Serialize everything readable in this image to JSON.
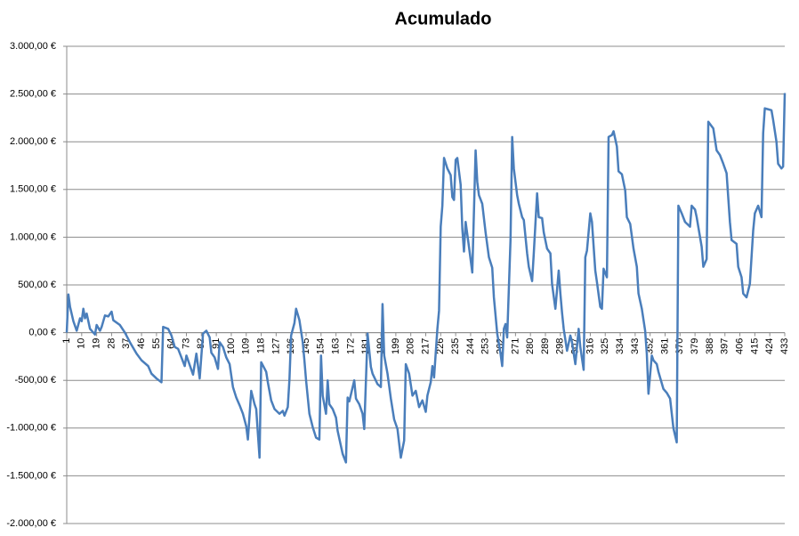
{
  "chart_data": {
    "type": "line",
    "title": "Acumulado",
    "x": [
      1,
      2,
      3,
      5,
      7,
      9,
      10,
      11,
      12,
      13,
      15,
      18,
      19,
      21,
      22,
      24,
      26,
      28,
      29,
      33,
      36,
      39,
      43,
      46,
      50,
      52,
      55,
      58,
      59,
      62,
      64,
      66,
      68,
      70,
      72,
      73,
      77,
      79,
      81,
      83,
      85,
      87,
      88,
      90,
      92,
      93,
      95,
      97,
      99,
      101,
      103,
      105,
      107,
      109,
      110,
      112,
      114,
      115,
      117,
      118,
      121,
      122,
      124,
      126,
      129,
      131,
      132,
      134,
      135,
      136,
      138,
      139,
      141,
      143,
      144,
      145,
      147,
      149,
      151,
      153,
      154,
      155,
      157,
      158,
      159,
      161,
      163,
      164,
      167,
      169,
      170,
      171,
      174,
      175,
      177,
      179,
      180,
      182,
      184,
      185,
      188,
      190,
      191,
      192,
      194,
      196,
      198,
      200,
      202,
      204,
      205,
      207,
      209,
      211,
      213,
      215,
      217,
      218,
      220,
      221,
      222,
      224,
      225,
      226,
      227,
      228,
      230,
      232,
      233,
      234,
      235,
      236,
      238,
      239,
      240,
      241,
      243,
      245,
      247,
      248,
      249,
      251,
      253,
      255,
      257,
      258,
      260,
      262,
      263,
      264,
      265,
      266,
      268,
      269,
      270,
      272,
      273,
      275,
      276,
      278,
      279,
      281,
      282,
      284,
      285,
      287,
      288,
      290,
      292,
      293,
      295,
      297,
      298,
      299,
      300,
      302,
      304,
      305,
      307,
      309,
      310,
      312,
      313,
      314,
      316,
      317,
      319,
      320,
      322,
      323,
      324,
      326,
      327,
      329,
      330,
      332,
      333,
      335,
      337,
      338,
      340,
      342,
      344,
      345,
      347,
      349,
      350,
      351,
      353,
      354,
      356,
      357,
      360,
      362,
      364,
      366,
      368,
      369,
      371,
      373,
      376,
      377,
      379,
      380,
      383,
      384,
      386,
      387,
      390,
      392,
      394,
      396,
      398,
      400,
      401,
      404,
      405,
      407,
      408,
      410,
      412,
      414,
      415,
      417,
      419,
      420,
      421,
      423,
      425,
      426,
      428,
      429,
      431,
      432,
      433
    ],
    "values": [
      0,
      400,
      270,
      120,
      20,
      150,
      120,
      250,
      150,
      200,
      40,
      -20,
      80,
      20,
      60,
      180,
      170,
      220,
      130,
      80,
      0,
      -100,
      -220,
      -290,
      -350,
      -430,
      -480,
      -520,
      60,
      40,
      -30,
      -150,
      -170,
      -260,
      -350,
      -240,
      -440,
      -220,
      -480,
      -10,
      20,
      -50,
      -210,
      -260,
      -380,
      -100,
      -150,
      -260,
      -330,
      -570,
      -680,
      -760,
      -850,
      -980,
      -1120,
      -610,
      -750,
      -800,
      -1310,
      -310,
      -410,
      -520,
      -710,
      -800,
      -850,
      -820,
      -870,
      -780,
      -490,
      -30,
      100,
      250,
      130,
      -100,
      -290,
      -500,
      -850,
      -990,
      -1100,
      -1120,
      -240,
      -660,
      -850,
      -500,
      -750,
      -800,
      -890,
      -1030,
      -1270,
      -1360,
      -680,
      -720,
      -500,
      -690,
      -750,
      -850,
      -1010,
      -10,
      -360,
      -430,
      -540,
      -570,
      300,
      -240,
      -430,
      -690,
      -910,
      -1010,
      -1310,
      -1130,
      -330,
      -430,
      -660,
      -610,
      -780,
      -710,
      -830,
      -660,
      -520,
      -350,
      -470,
      40,
      230,
      1110,
      1330,
      1830,
      1720,
      1650,
      1420,
      1390,
      1810,
      1830,
      1550,
      1090,
      850,
      1160,
      900,
      630,
      1910,
      1580,
      1440,
      1350,
      1050,
      790,
      680,
      370,
      -10,
      -220,
      -350,
      40,
      90,
      -50,
      970,
      2050,
      1720,
      1440,
      1350,
      1210,
      1180,
      830,
      690,
      540,
      830,
      1460,
      1210,
      1200,
      1050,
      880,
      830,
      510,
      250,
      650,
      410,
      210,
      40,
      -190,
      -30,
      -100,
      -330,
      40,
      -150,
      -390,
      790,
      860,
      1250,
      1160,
      650,
      530,
      270,
      250,
      670,
      580,
      2050,
      2070,
      2110,
      1950,
      1690,
      1660,
      1490,
      1210,
      1140,
      880,
      690,
      410,
      250,
      20,
      -220,
      -640,
      -240,
      -290,
      -330,
      -410,
      -590,
      -630,
      -690,
      -1000,
      -1150,
      1330,
      1250,
      1160,
      1110,
      1330,
      1290,
      1210,
      900,
      690,
      770,
      2210,
      2140,
      1910,
      1860,
      1770,
      1670,
      1160,
      970,
      930,
      690,
      580,
      410,
      370,
      510,
      1070,
      1250,
      1330,
      1210,
      2090,
      2350,
      2340,
      2330,
      2230,
      2000,
      1770,
      1720,
      1740,
      2510
    ],
    "color": "#4a7ebb",
    "xlim": [
      1,
      433
    ],
    "xticks": [
      1,
      10,
      19,
      28,
      37,
      46,
      55,
      64,
      73,
      82,
      91,
      100,
      109,
      118,
      127,
      136,
      145,
      154,
      163,
      172,
      181,
      190,
      199,
      208,
      217,
      226,
      235,
      244,
      253,
      262,
      271,
      280,
      289,
      298,
      307,
      316,
      325,
      334,
      343,
      352,
      361,
      370,
      379,
      388,
      397,
      406,
      415,
      424,
      433
    ],
    "ylim": [
      -2000,
      3000
    ],
    "yticks": [
      {
        "value": -2000,
        "label": "-2.000,00 €"
      },
      {
        "value": -1500,
        "label": "-1.500,00 €"
      },
      {
        "value": -1000,
        "label": "-1.000,00 €"
      },
      {
        "value": -500,
        "label": "-500,00 €"
      },
      {
        "value": 0,
        "label": "0,00 €"
      },
      {
        "value": 500,
        "label": "500,00 €"
      },
      {
        "value": 1000,
        "label": "1.000,00 €"
      },
      {
        "value": 1500,
        "label": "1.500,00 €"
      },
      {
        "value": 2000,
        "label": "2.000,00 €"
      },
      {
        "value": 2500,
        "label": "2.500,00 €"
      },
      {
        "value": 3000,
        "label": "3.000,00 €"
      }
    ],
    "grid": true
  }
}
